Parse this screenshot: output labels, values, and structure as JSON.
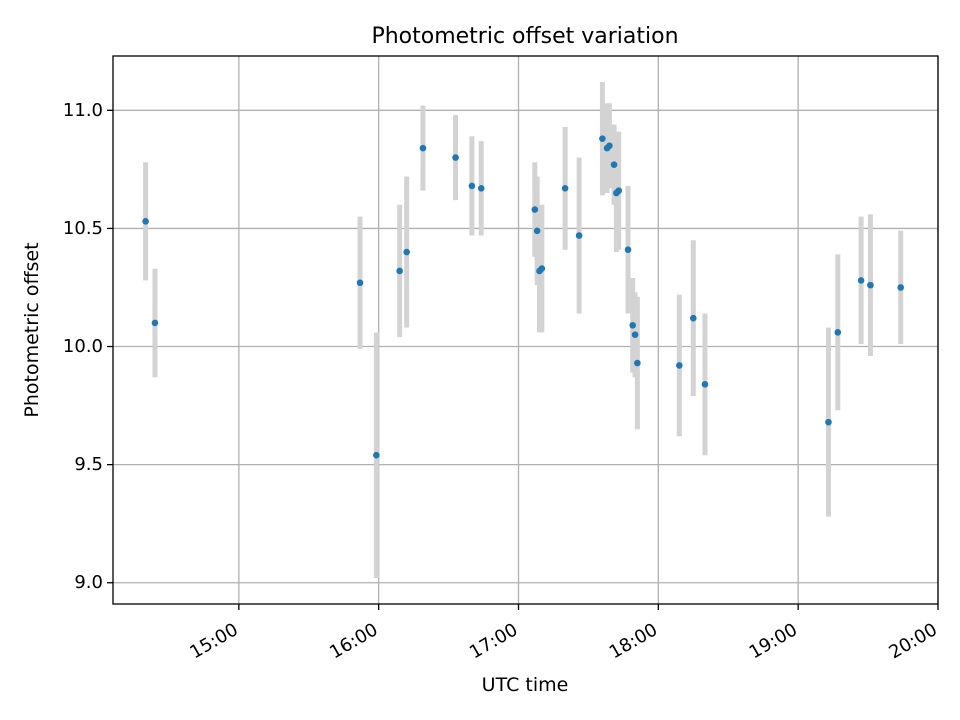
{
  "chart_data": {
    "type": "scatter",
    "title": "Photometric offset variation",
    "xlabel": "UTC time",
    "ylabel": "Photometric offset",
    "x_unit": "hours (UTC)",
    "xlim": [
      14.1,
      20.0
    ],
    "ylim": [
      8.91,
      11.23
    ],
    "grid": true,
    "legend": "none",
    "x_ticks": [
      {
        "value": 15,
        "label": "15:00"
      },
      {
        "value": 16,
        "label": "16:00"
      },
      {
        "value": 17,
        "label": "17:00"
      },
      {
        "value": 18,
        "label": "18:00"
      },
      {
        "value": 19,
        "label": "19:00"
      },
      {
        "value": 20,
        "label": "20:00"
      }
    ],
    "y_ticks": [
      {
        "value": 9.0,
        "label": "9.0"
      },
      {
        "value": 9.5,
        "label": "9.5"
      },
      {
        "value": 10.0,
        "label": "10.0"
      },
      {
        "value": 10.5,
        "label": "10.5"
      },
      {
        "value": 11.0,
        "label": "11.0"
      }
    ],
    "colors": {
      "point": "#1f77b4",
      "errorbar": "#d3d3d3",
      "grid": "#b0b0b0"
    },
    "points": [
      {
        "time": "14:20",
        "y": 10.53,
        "err": 0.25
      },
      {
        "time": "14:24",
        "y": 10.1,
        "err": 0.23
      },
      {
        "time": "15:52",
        "y": 10.27,
        "err": 0.28
      },
      {
        "time": "15:59",
        "y": 9.54,
        "err": 0.52
      },
      {
        "time": "16:09",
        "y": 10.32,
        "err": 0.28
      },
      {
        "time": "16:12",
        "y": 10.4,
        "err": 0.32
      },
      {
        "time": "16:19",
        "y": 10.84,
        "err": 0.18
      },
      {
        "time": "16:33",
        "y": 10.8,
        "err": 0.18
      },
      {
        "time": "16:40",
        "y": 10.68,
        "err": 0.21
      },
      {
        "time": "16:44",
        "y": 10.67,
        "err": 0.2
      },
      {
        "time": "17:07",
        "y": 10.58,
        "err": 0.2
      },
      {
        "time": "17:08",
        "y": 10.49,
        "err": 0.23
      },
      {
        "time": "17:09",
        "y": 10.32,
        "err": 0.26
      },
      {
        "time": "17:10",
        "y": 10.33,
        "err": 0.27
      },
      {
        "time": "17:20",
        "y": 10.67,
        "err": 0.26
      },
      {
        "time": "17:26",
        "y": 10.47,
        "err": 0.33
      },
      {
        "time": "17:36",
        "y": 10.88,
        "err": 0.24
      },
      {
        "time": "17:38",
        "y": 10.84,
        "err": 0.19
      },
      {
        "time": "17:39",
        "y": 10.85,
        "err": 0.18
      },
      {
        "time": "17:41",
        "y": 10.77,
        "err": 0.17
      },
      {
        "time": "17:42",
        "y": 10.65,
        "err": 0.25
      },
      {
        "time": "17:43",
        "y": 10.66,
        "err": 0.25
      },
      {
        "time": "17:47",
        "y": 10.41,
        "err": 0.27
      },
      {
        "time": "17:49",
        "y": 10.09,
        "err": 0.2
      },
      {
        "time": "17:50",
        "y": 10.05,
        "err": 0.18
      },
      {
        "time": "17:51",
        "y": 9.93,
        "err": 0.28
      },
      {
        "time": "18:09",
        "y": 9.92,
        "err": 0.3
      },
      {
        "time": "18:15",
        "y": 10.12,
        "err": 0.33
      },
      {
        "time": "18:20",
        "y": 9.84,
        "err": 0.3
      },
      {
        "time": "19:13",
        "y": 9.68,
        "err": 0.4
      },
      {
        "time": "19:17",
        "y": 10.06,
        "err": 0.33
      },
      {
        "time": "19:27",
        "y": 10.28,
        "err": 0.27
      },
      {
        "time": "19:31",
        "y": 10.26,
        "err": 0.3
      },
      {
        "time": "19:44",
        "y": 10.25,
        "err": 0.24
      }
    ]
  }
}
